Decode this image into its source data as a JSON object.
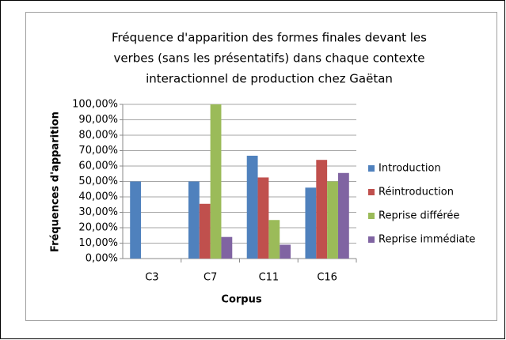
{
  "chart_data": {
    "type": "bar",
    "title": [
      "Fréquence d'apparition des formes finales  devant les",
      "verbes (sans les présentatifs) dans chaque contexte",
      "interactionnel de production chez Gaëtan"
    ],
    "x_label": "Corpus",
    "y_label": "Fréquences d'apparition",
    "categories": [
      "C3",
      "C7",
      "C11",
      "C16"
    ],
    "series": [
      {
        "name": "Introduction",
        "color": "#4f81bd",
        "values": [
          50,
          50,
          66.7,
          46
        ]
      },
      {
        "name": "Réintroduction",
        "color": "#c0504d",
        "values": [
          0,
          35.5,
          52.6,
          64
        ]
      },
      {
        "name": "Reprise différée",
        "color": "#9bbb59",
        "values": [
          0,
          100,
          25,
          50
        ]
      },
      {
        "name": "Reprise immédiate",
        "color": "#8064a2",
        "values": [
          0,
          14,
          9,
          55.5
        ]
      }
    ],
    "ylim": [
      0,
      100
    ],
    "yticks": [
      {
        "value": 0,
        "label": "0,00%"
      },
      {
        "value": 10,
        "label": "10,00%"
      },
      {
        "value": 20,
        "label": "20,00%"
      },
      {
        "value": 30,
        "label": "30,00%"
      },
      {
        "value": 40,
        "label": "40,00%"
      },
      {
        "value": 50,
        "label": "50,00%"
      },
      {
        "value": 60,
        "label": "60,00%"
      },
      {
        "value": 70,
        "label": "70,00%"
      },
      {
        "value": 80,
        "label": "80,00%"
      },
      {
        "value": 90,
        "label": "90,00%"
      },
      {
        "value": 100,
        "label": "100,00%"
      }
    ],
    "grid": true,
    "legend": "right"
  }
}
